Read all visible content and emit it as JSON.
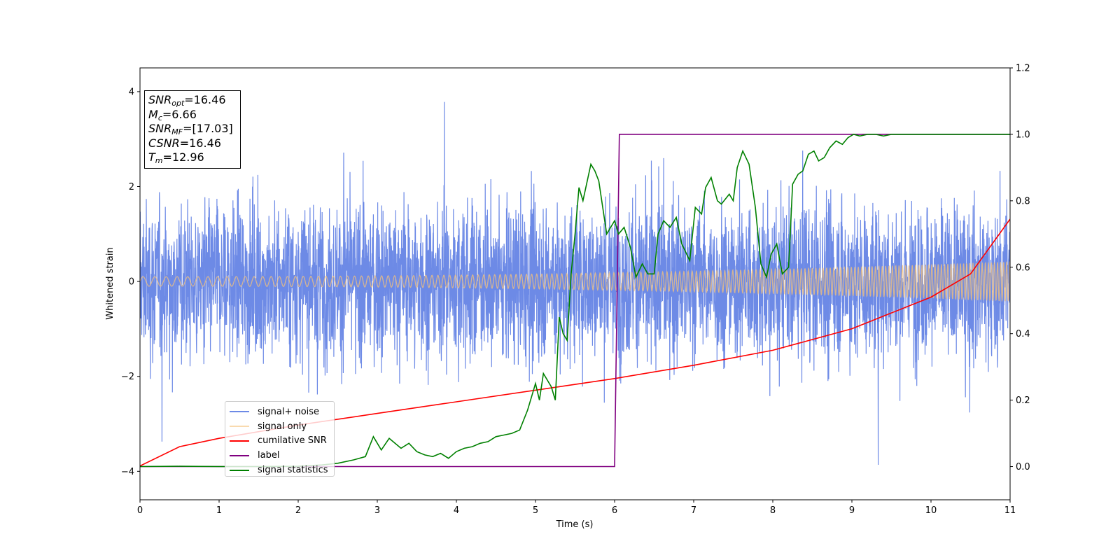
{
  "chart_data": {
    "type": "line",
    "xlabel": "Time (s)",
    "ylabel": "Whitened strain",
    "xlim": [
      0,
      11
    ],
    "ylim_left": [
      -4.6,
      4.5
    ],
    "ylim_right": [
      -0.1,
      1.2
    ],
    "x_ticks": [
      "0",
      "1",
      "2",
      "3",
      "4",
      "5",
      "6",
      "7",
      "8",
      "9",
      "10",
      "11"
    ],
    "y_left_ticks": [
      "−4",
      "−2",
      "0",
      "2",
      "4"
    ],
    "y_right_ticks": [
      "0.0",
      "0.2",
      "0.4",
      "0.6",
      "0.8",
      "1.0",
      "1.2"
    ],
    "grid": false,
    "legend_position": "lower-left",
    "info_box": {
      "snr_opt": {
        "sym": "SNR",
        "sub": "opt",
        "value": "=16.46"
      },
      "mc": {
        "sym": "M",
        "sub": "c",
        "value": "=6.66"
      },
      "snr_mf": {
        "sym": "SNR",
        "sub": "MF",
        "value": "=[17.03]"
      },
      "csnr": {
        "sym": "CSNR",
        "sub": "",
        "value": "=16.46"
      },
      "tm": {
        "sym": "T",
        "sub": "m",
        "value": "=12.96"
      }
    },
    "series": [
      {
        "name": "signal+ noise",
        "axis": "left",
        "color": "#6d8ae6",
        "description_range": [
          -4.1,
          4.1
        ],
        "typical_amplitude": 1.2
      },
      {
        "name": "signal only",
        "axis": "left",
        "color": "#f5c27a",
        "amplitude_start": 0.1,
        "amplitude_end": 0.42
      },
      {
        "name": "cumilative SNR",
        "axis": "right",
        "color": "#ff0000",
        "x": [
          0,
          0.5,
          1,
          2,
          3,
          4,
          5,
          6,
          7,
          8,
          9,
          10,
          10.5,
          11
        ],
        "y": [
          0.002,
          0.06,
          0.085,
          0.125,
          0.16,
          0.195,
          0.23,
          0.265,
          0.305,
          0.35,
          0.415,
          0.51,
          0.58,
          0.745
        ]
      },
      {
        "name": "label",
        "axis": "right",
        "color": "#800080",
        "x": [
          0,
          6.0,
          6.06,
          11
        ],
        "y": [
          0,
          0,
          1,
          1
        ]
      },
      {
        "name": "signal statistics",
        "axis": "right",
        "color": "#008000",
        "x": [
          0,
          0.5,
          1.0,
          1.5,
          2.0,
          2.3,
          2.5,
          2.7,
          2.85,
          2.95,
          3.05,
          3.15,
          3.3,
          3.4,
          3.5,
          3.6,
          3.7,
          3.8,
          3.9,
          4.0,
          4.1,
          4.2,
          4.3,
          4.4,
          4.5,
          4.6,
          4.7,
          4.8,
          4.9,
          5.0,
          5.05,
          5.1,
          5.2,
          5.25,
          5.3,
          5.35,
          5.4,
          5.45,
          5.5,
          5.55,
          5.6,
          5.7,
          5.75,
          5.8,
          5.9,
          6.0,
          6.05,
          6.12,
          6.2,
          6.27,
          6.35,
          6.42,
          6.5,
          6.55,
          6.62,
          6.7,
          6.78,
          6.85,
          6.95,
          7.02,
          7.1,
          7.15,
          7.22,
          7.3,
          7.35,
          7.45,
          7.5,
          7.55,
          7.62,
          7.7,
          7.78,
          7.85,
          7.92,
          7.98,
          8.05,
          8.12,
          8.2,
          8.25,
          8.32,
          8.38,
          8.45,
          8.52,
          8.58,
          8.65,
          8.72,
          8.8,
          8.88,
          8.95,
          9.02,
          9.1,
          9.2,
          9.3,
          9.4,
          9.5,
          9.6,
          9.7,
          9.8,
          9.9,
          10.0,
          10.2,
          10.5,
          10.8,
          11.0
        ],
        "y": [
          0.0,
          0.001,
          0.0,
          0.0,
          0.001,
          0.005,
          0.01,
          0.02,
          0.03,
          0.09,
          0.05,
          0.085,
          0.055,
          0.07,
          0.045,
          0.035,
          0.03,
          0.04,
          0.025,
          0.045,
          0.055,
          0.06,
          0.07,
          0.075,
          0.09,
          0.095,
          0.1,
          0.11,
          0.17,
          0.25,
          0.2,
          0.28,
          0.24,
          0.2,
          0.45,
          0.4,
          0.38,
          0.58,
          0.7,
          0.84,
          0.8,
          0.91,
          0.89,
          0.86,
          0.7,
          0.74,
          0.7,
          0.72,
          0.66,
          0.57,
          0.61,
          0.58,
          0.58,
          0.7,
          0.74,
          0.72,
          0.75,
          0.67,
          0.62,
          0.78,
          0.76,
          0.84,
          0.87,
          0.8,
          0.79,
          0.82,
          0.8,
          0.9,
          0.95,
          0.91,
          0.78,
          0.61,
          0.57,
          0.64,
          0.67,
          0.58,
          0.6,
          0.85,
          0.88,
          0.89,
          0.94,
          0.95,
          0.92,
          0.93,
          0.96,
          0.98,
          0.97,
          0.99,
          1.0,
          0.995,
          1.0,
          1.0,
          0.995,
          1.0,
          1.0,
          1.0,
          1.0,
          1.0,
          1.0,
          1.0,
          1.0,
          1.0,
          1.0
        ]
      }
    ]
  }
}
